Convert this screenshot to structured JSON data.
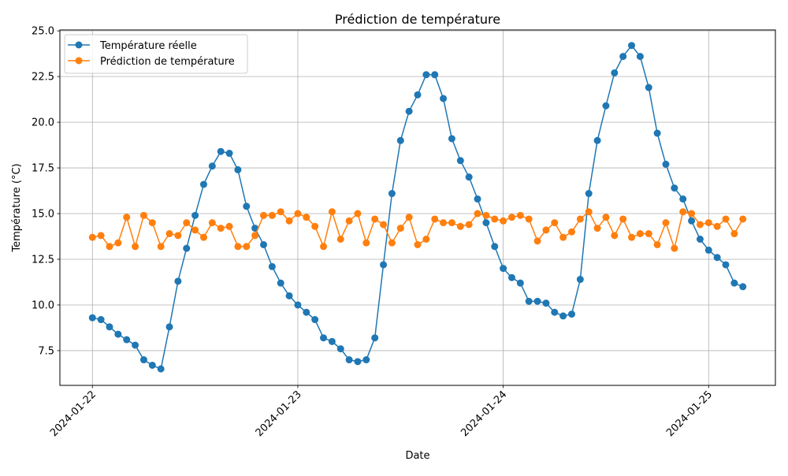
{
  "chart_data": {
    "type": "line",
    "title": "Prédiction de température",
    "xlabel": "Date",
    "ylabel": "Température (°C)",
    "x_tick_labels": [
      "2024-01-22",
      "2024-01-23",
      "2024-01-24",
      "2024-01-25"
    ],
    "x_tick_hours": [
      0,
      24,
      48,
      72
    ],
    "x_range_hours": [
      -3.8,
      79.8
    ],
    "y_ticks": [
      7.5,
      10.0,
      12.5,
      15.0,
      17.5,
      20.0,
      22.5,
      25.0
    ],
    "y_tick_labels": [
      "7.5",
      "10.0",
      "12.5",
      "15.0",
      "17.5",
      "20.0",
      "22.5",
      "25.0"
    ],
    "ylim": [
      5.6,
      25.05
    ],
    "grid": true,
    "legend_position": "top-left",
    "x_start": "2024-01-22 00:00",
    "x_step_hours": 1,
    "series": [
      {
        "name": "Température réelle",
        "color": "#1f77b4",
        "values": [
          9.3,
          9.2,
          8.8,
          8.4,
          8.1,
          7.8,
          7.0,
          6.7,
          6.5,
          8.8,
          11.3,
          13.1,
          14.9,
          16.6,
          17.6,
          18.4,
          18.3,
          17.4,
          15.4,
          14.2,
          13.3,
          12.1,
          11.2,
          10.5,
          10.0,
          9.6,
          9.2,
          8.2,
          8.0,
          7.6,
          7.0,
          6.9,
          7.0,
          8.2,
          12.2,
          16.1,
          19.0,
          20.6,
          21.5,
          22.6,
          22.6,
          21.3,
          19.1,
          17.9,
          17.0,
          15.8,
          14.5,
          13.2,
          12.0,
          11.5,
          11.2,
          10.2,
          10.2,
          10.1,
          9.6,
          9.4,
          9.5,
          11.4,
          16.1,
          19.0,
          20.9,
          22.7,
          23.6,
          24.2,
          23.6,
          21.9,
          19.4,
          17.7,
          16.4,
          15.8,
          14.6,
          13.6,
          13.0,
          12.6,
          12.2,
          11.2,
          11.0
        ]
      },
      {
        "name": "Prédiction de température",
        "color": "#ff7f0e",
        "values": [
          13.7,
          13.8,
          13.2,
          13.4,
          14.8,
          13.2,
          14.9,
          14.5,
          13.2,
          13.9,
          13.8,
          14.5,
          14.1,
          13.7,
          14.5,
          14.2,
          14.3,
          13.2,
          13.2,
          13.8,
          14.9,
          14.9,
          15.1,
          14.6,
          15.0,
          14.8,
          14.3,
          13.2,
          15.1,
          13.6,
          14.6,
          15.0,
          13.4,
          14.7,
          14.4,
          13.4,
          14.2,
          14.8,
          13.3,
          13.6,
          14.7,
          14.5,
          14.5,
          14.3,
          14.4,
          15.0,
          14.9,
          14.7,
          14.6,
          14.8,
          14.9,
          14.7,
          13.5,
          14.1,
          14.5,
          13.7,
          14.0,
          14.7,
          15.1,
          14.2,
          14.8,
          13.8,
          14.7,
          13.7,
          13.9,
          13.9,
          13.3,
          14.5,
          13.1,
          15.1,
          15.0,
          14.4,
          14.5,
          14.3,
          14.7,
          13.9,
          14.7
        ]
      }
    ]
  }
}
